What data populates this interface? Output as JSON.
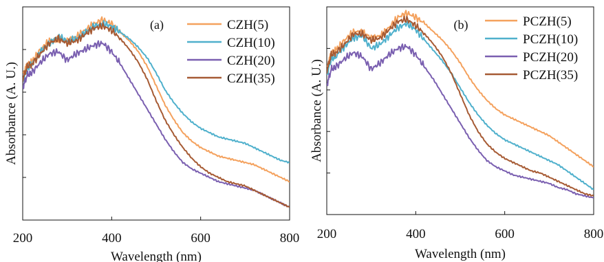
{
  "chart_data": [
    {
      "type": "line",
      "panel_label": "(a)",
      "xlabel": "Wavelength (nm)",
      "ylabel": "Absorbance (A. U.)",
      "xlim": [
        200,
        800
      ],
      "x_ticks": [
        200,
        400,
        600,
        800
      ],
      "y_ticks_unlabeled": 4,
      "legend_position": "top-right",
      "series": [
        {
          "name": "CZH(5)",
          "color": "#f4a15d",
          "x": [
            200,
            210,
            220,
            240,
            260,
            280,
            300,
            320,
            340,
            360,
            380,
            400,
            420,
            440,
            460,
            480,
            500,
            520,
            540,
            560,
            580,
            600,
            620,
            640,
            660,
            680,
            700,
            720,
            740,
            760,
            780,
            800
          ],
          "y": [
            0.68,
            0.73,
            0.74,
            0.8,
            0.84,
            0.85,
            0.84,
            0.86,
            0.89,
            0.92,
            0.94,
            0.92,
            0.88,
            0.84,
            0.79,
            0.72,
            0.63,
            0.54,
            0.47,
            0.41,
            0.37,
            0.34,
            0.32,
            0.3,
            0.29,
            0.28,
            0.27,
            0.26,
            0.24,
            0.22,
            0.2,
            0.18
          ]
        },
        {
          "name": "CZH(10)",
          "color": "#4fb0cc",
          "x": [
            200,
            210,
            220,
            240,
            260,
            280,
            300,
            320,
            340,
            360,
            380,
            400,
            420,
            440,
            460,
            480,
            500,
            520,
            540,
            560,
            580,
            600,
            620,
            640,
            660,
            680,
            700,
            720,
            740,
            760,
            780,
            800
          ],
          "y": [
            0.65,
            0.71,
            0.73,
            0.79,
            0.83,
            0.86,
            0.84,
            0.85,
            0.88,
            0.91,
            0.92,
            0.91,
            0.88,
            0.85,
            0.81,
            0.76,
            0.69,
            0.61,
            0.55,
            0.5,
            0.46,
            0.43,
            0.41,
            0.39,
            0.38,
            0.37,
            0.36,
            0.34,
            0.32,
            0.3,
            0.28,
            0.27
          ]
        },
        {
          "name": "CZH(20)",
          "color": "#7a5fb0",
          "x": [
            200,
            210,
            220,
            240,
            260,
            280,
            300,
            320,
            340,
            360,
            380,
            400,
            420,
            440,
            460,
            480,
            500,
            520,
            540,
            560,
            580,
            600,
            620,
            640,
            660,
            680,
            700,
            720,
            740,
            760,
            780,
            800
          ],
          "y": [
            0.62,
            0.68,
            0.69,
            0.74,
            0.78,
            0.79,
            0.75,
            0.78,
            0.8,
            0.82,
            0.83,
            0.79,
            0.73,
            0.66,
            0.59,
            0.52,
            0.45,
            0.38,
            0.32,
            0.27,
            0.24,
            0.22,
            0.2,
            0.18,
            0.17,
            0.16,
            0.15,
            0.14,
            0.12,
            0.1,
            0.08,
            0.06
          ]
        },
        {
          "name": "CZH(35)",
          "color": "#a65a33",
          "x": [
            200,
            210,
            220,
            240,
            260,
            280,
            300,
            320,
            340,
            360,
            380,
            400,
            420,
            440,
            460,
            480,
            500,
            520,
            540,
            560,
            580,
            600,
            620,
            640,
            660,
            680,
            700,
            720,
            740,
            760,
            780,
            800
          ],
          "y": [
            0.66,
            0.72,
            0.73,
            0.78,
            0.83,
            0.85,
            0.83,
            0.84,
            0.87,
            0.9,
            0.91,
            0.89,
            0.85,
            0.8,
            0.74,
            0.66,
            0.56,
            0.47,
            0.4,
            0.34,
            0.29,
            0.25,
            0.22,
            0.2,
            0.18,
            0.17,
            0.16,
            0.14,
            0.12,
            0.1,
            0.08,
            0.06
          ]
        }
      ]
    },
    {
      "type": "line",
      "panel_label": "(b)",
      "xlabel": "Wavelength (nm)",
      "ylabel": "Absorbance (A. U.)",
      "xlim": [
        200,
        800
      ],
      "x_ticks": [
        200,
        400,
        600,
        800
      ],
      "y_ticks_unlabeled": 4,
      "legend_position": "top-right",
      "series": [
        {
          "name": "PCZH(5)",
          "color": "#f4a15d",
          "x": [
            200,
            210,
            220,
            240,
            260,
            280,
            300,
            320,
            340,
            360,
            380,
            400,
            420,
            440,
            460,
            480,
            500,
            520,
            540,
            560,
            580,
            600,
            620,
            640,
            660,
            680,
            700,
            720,
            740,
            760,
            780,
            800
          ],
          "y": [
            0.7,
            0.78,
            0.79,
            0.84,
            0.88,
            0.88,
            0.85,
            0.86,
            0.9,
            0.95,
            0.97,
            0.95,
            0.92,
            0.88,
            0.84,
            0.79,
            0.73,
            0.66,
            0.6,
            0.55,
            0.51,
            0.48,
            0.46,
            0.44,
            0.42,
            0.4,
            0.38,
            0.35,
            0.32,
            0.29,
            0.26,
            0.23
          ]
        },
        {
          "name": "PCZH(10)",
          "color": "#4fb0cc",
          "x": [
            200,
            210,
            220,
            240,
            260,
            280,
            300,
            320,
            340,
            360,
            380,
            400,
            420,
            440,
            460,
            480,
            500,
            520,
            540,
            560,
            580,
            600,
            620,
            640,
            660,
            680,
            700,
            720,
            740,
            760,
            780,
            800
          ],
          "y": [
            0.67,
            0.75,
            0.76,
            0.81,
            0.85,
            0.86,
            0.8,
            0.82,
            0.86,
            0.9,
            0.92,
            0.89,
            0.84,
            0.79,
            0.74,
            0.68,
            0.61,
            0.54,
            0.48,
            0.43,
            0.39,
            0.36,
            0.34,
            0.32,
            0.3,
            0.28,
            0.26,
            0.24,
            0.21,
            0.18,
            0.15,
            0.12
          ]
        },
        {
          "name": "PCZH(20)",
          "color": "#7a5fb0",
          "x": [
            200,
            210,
            220,
            240,
            260,
            280,
            300,
            320,
            340,
            360,
            380,
            400,
            420,
            440,
            460,
            480,
            500,
            520,
            540,
            560,
            580,
            600,
            620,
            640,
            660,
            680,
            700,
            720,
            740,
            760,
            780,
            800
          ],
          "y": [
            0.62,
            0.7,
            0.71,
            0.75,
            0.78,
            0.76,
            0.7,
            0.73,
            0.77,
            0.8,
            0.81,
            0.77,
            0.71,
            0.65,
            0.58,
            0.51,
            0.44,
            0.37,
            0.31,
            0.26,
            0.23,
            0.21,
            0.19,
            0.18,
            0.17,
            0.16,
            0.15,
            0.13,
            0.12,
            0.1,
            0.09,
            0.08
          ]
        },
        {
          "name": "PCZH(35)",
          "color": "#a65a33",
          "x": [
            200,
            210,
            220,
            240,
            260,
            280,
            300,
            320,
            340,
            360,
            380,
            400,
            420,
            440,
            460,
            480,
            500,
            520,
            540,
            560,
            580,
            600,
            620,
            640,
            660,
            680,
            700,
            720,
            740,
            760,
            780,
            800
          ],
          "y": [
            0.69,
            0.77,
            0.78,
            0.82,
            0.87,
            0.87,
            0.84,
            0.85,
            0.89,
            0.93,
            0.94,
            0.91,
            0.87,
            0.82,
            0.76,
            0.68,
            0.58,
            0.48,
            0.4,
            0.34,
            0.3,
            0.27,
            0.25,
            0.23,
            0.21,
            0.2,
            0.18,
            0.16,
            0.14,
            0.12,
            0.1,
            0.09
          ]
        }
      ]
    }
  ]
}
